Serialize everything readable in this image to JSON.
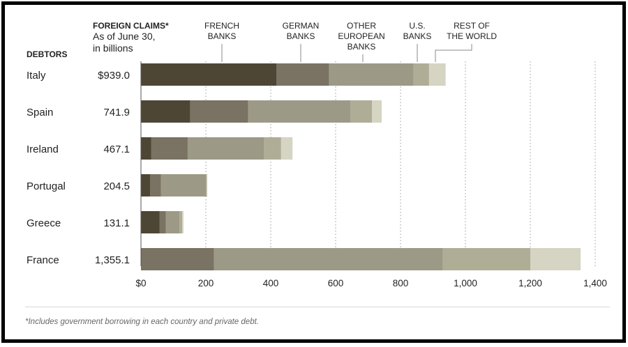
{
  "header": {
    "title": "FOREIGN CLAIMS*",
    "subtitle_line1": "As of June 30,",
    "subtitle_line2": "in billions",
    "debtors_label": "DEBTORS"
  },
  "footnote": "*Includes government borrowing in each country and private debt.",
  "chart_data": {
    "type": "bar",
    "orientation": "horizontal",
    "stacked": true,
    "title": "FOREIGN CLAIMS*",
    "subtitle": "As of June 30, in billions",
    "ylabel": "DEBTORS",
    "categories": [
      "Italy",
      "Spain",
      "Ireland",
      "Portugal",
      "Greece",
      "France"
    ],
    "total_labels": [
      "$939.0",
      "741.9",
      "467.1",
      "204.5",
      "131.1",
      "1,355.1"
    ],
    "totals": [
      939.0,
      741.9,
      467.1,
      204.5,
      131.1,
      1355.1
    ],
    "series": [
      {
        "name": "FRENCH BANKS",
        "color": "#4e4634",
        "values": [
          418,
          152,
          32,
          28,
          57,
          0
        ]
      },
      {
        "name": "GERMAN BANKS",
        "color": "#7a7262",
        "values": [
          162,
          178,
          112,
          34,
          20,
          225
        ]
      },
      {
        "name": "OTHER EUROPEAN BANKS",
        "color": "#9c9a86",
        "values": [
          260,
          316,
          236,
          138,
          42,
          705
        ]
      },
      {
        "name": "U.S. BANKS",
        "color": "#b0ad97",
        "values": [
          48,
          66,
          52,
          3,
          8,
          270
        ]
      },
      {
        "name": "REST OF THE WORLD",
        "color": "#d6d4c3",
        "values": [
          51,
          29.9,
          35.1,
          1.5,
          4.1,
          155.1
        ]
      }
    ],
    "legend_labels": [
      [
        "FRENCH",
        "BANKS"
      ],
      [
        "GERMAN",
        "BANKS"
      ],
      [
        "OTHER",
        "EUROPEAN",
        "BANKS"
      ],
      [
        "U.S.",
        "BANKS"
      ],
      [
        "REST OF",
        "THE WORLD"
      ]
    ],
    "x_ticks": [
      0,
      200,
      400,
      600,
      800,
      1000,
      1200,
      1400
    ],
    "x_tick_labels": [
      "$0",
      "200",
      "400",
      "600",
      "800",
      "1,000",
      "1,200",
      "1,400"
    ],
    "xlim": [
      0,
      1400
    ],
    "grid": "vertical dotted",
    "legend_position": "top, labels with leader lines"
  }
}
